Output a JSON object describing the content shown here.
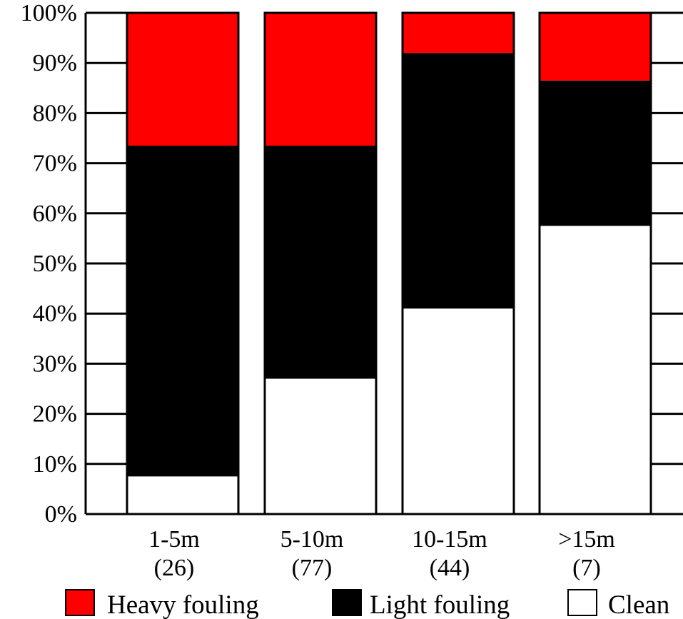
{
  "chart_data": {
    "type": "bar",
    "stacked": true,
    "categories": [
      "1-5m",
      "5-10m",
      "10-15m",
      ">15m"
    ],
    "category_counts": [
      "(26)",
      "(77)",
      "(44)",
      "(7)"
    ],
    "series": [
      {
        "name": "Clean",
        "color": "#ffffff",
        "values": [
          7.5,
          27,
          41,
          57.5
        ]
      },
      {
        "name": "Light fouling",
        "color": "#000000",
        "values": [
          66,
          46.5,
          51,
          29
        ]
      },
      {
        "name": "Heavy fouling",
        "color": "#ff0000",
        "values": [
          26.5,
          26.5,
          8,
          13.5
        ]
      }
    ],
    "legend_order": [
      "Heavy fouling",
      "Light fouling",
      "Clean"
    ],
    "legend_position": "bottom",
    "y_ticks": [
      "0%",
      "10%",
      "20%",
      "30%",
      "40%",
      "50%",
      "60%",
      "70%",
      "80%",
      "90%",
      "100%"
    ],
    "ylim": [
      0,
      100
    ],
    "grid": false,
    "title": "",
    "xlabel": "",
    "ylabel": ""
  }
}
